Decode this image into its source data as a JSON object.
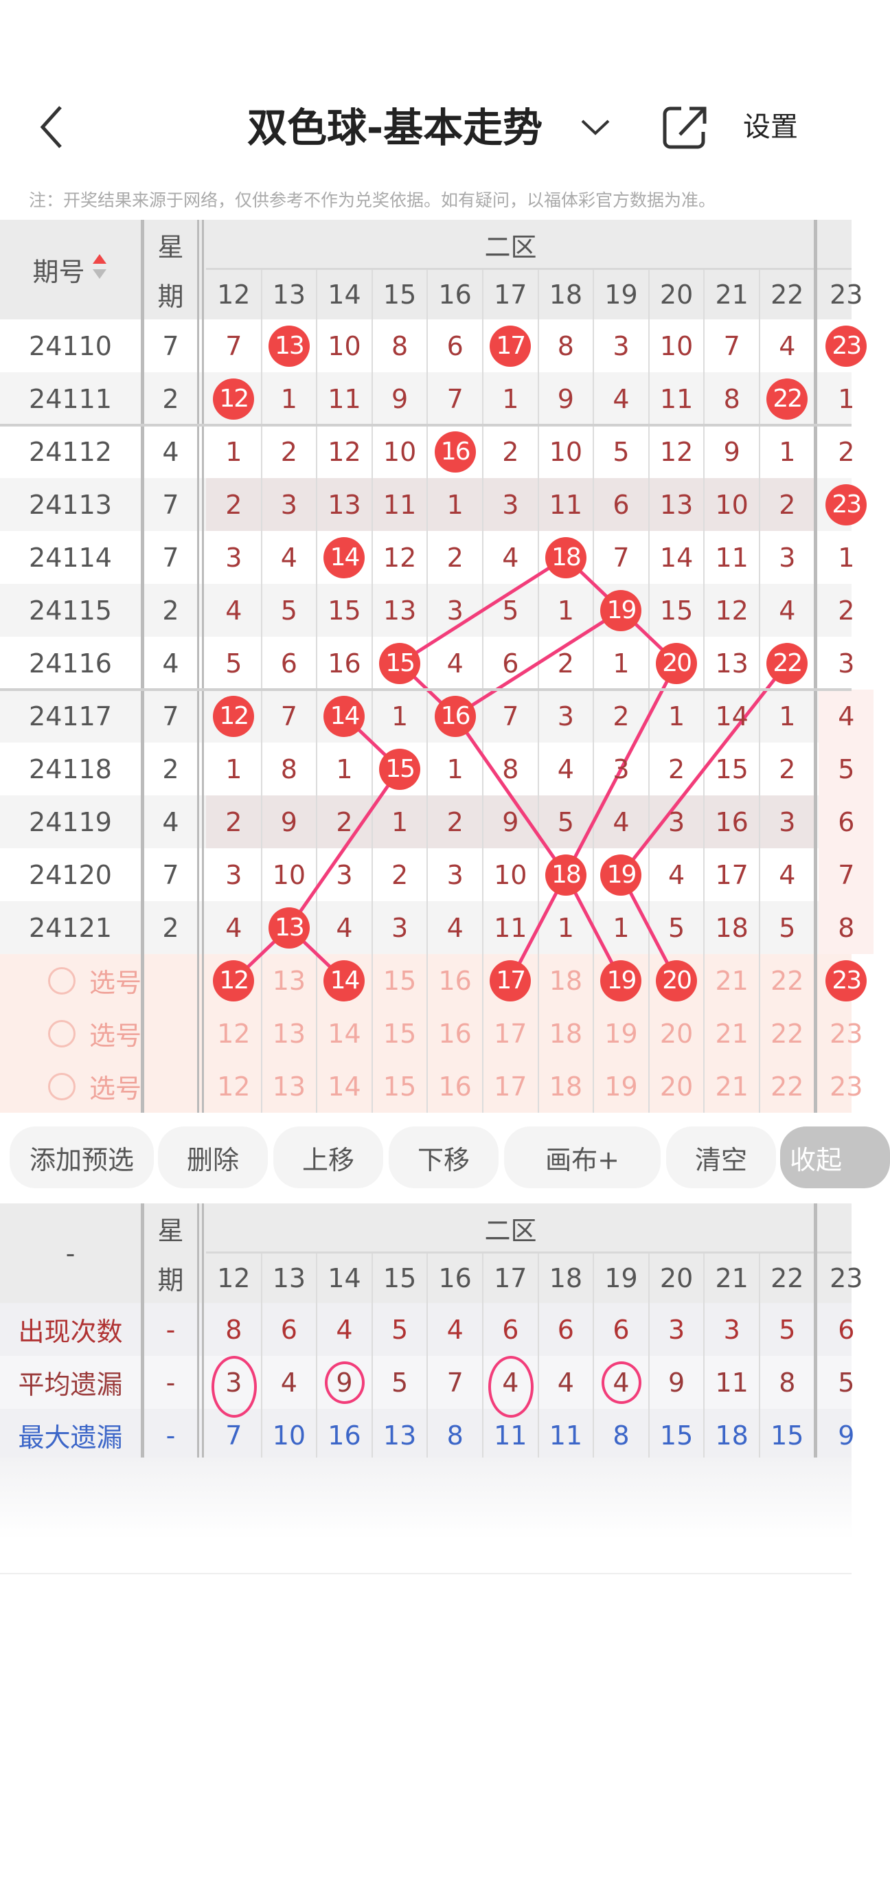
{
  "nav": {
    "title": "双色球-基本走势",
    "settings_label": "设置",
    "icons": {
      "back": "chevron-left-icon",
      "title_dropdown": "chevron-down-icon",
      "share": "share-icon"
    }
  },
  "note": "注：开奖结果来源于网络，仅供参考不作为兑奖依据。如有疑问，以福体彩官方数据为准。",
  "trend_table": {
    "period_header": "期号",
    "week_header_top": "星",
    "week_header_bottom": "期",
    "zone_header": "二区",
    "columns": [
      "12",
      "13",
      "14",
      "15",
      "16",
      "17",
      "18",
      "19",
      "20",
      "21",
      "22",
      "23"
    ],
    "rows": [
      {
        "period": "24110",
        "week": "7",
        "values": [
          "7",
          "13",
          "10",
          "8",
          "6",
          "17",
          "8",
          "3",
          "10",
          "7",
          "4",
          "23"
        ]
      },
      {
        "period": "24111",
        "week": "2",
        "values": [
          "12",
          "1",
          "11",
          "9",
          "7",
          "1",
          "9",
          "4",
          "11",
          "8",
          "22",
          "1"
        ]
      },
      {
        "period": "24112",
        "week": "4",
        "values": [
          "1",
          "2",
          "12",
          "10",
          "16",
          "2",
          "10",
          "5",
          "12",
          "9",
          "1",
          "2"
        ]
      },
      {
        "period": "24113",
        "week": "7",
        "values": [
          "2",
          "3",
          "13",
          "11",
          "1",
          "3",
          "11",
          "6",
          "13",
          "10",
          "2",
          "23"
        ]
      },
      {
        "period": "24114",
        "week": "7",
        "values": [
          "3",
          "4",
          "14",
          "12",
          "2",
          "4",
          "18",
          "7",
          "14",
          "11",
          "3",
          "1"
        ]
      },
      {
        "period": "24115",
        "week": "2",
        "values": [
          "4",
          "5",
          "15",
          "13",
          "3",
          "5",
          "1",
          "19",
          "15",
          "12",
          "4",
          "2"
        ]
      },
      {
        "period": "24116",
        "week": "4",
        "values": [
          "5",
          "6",
          "16",
          "15",
          "4",
          "6",
          "2",
          "1",
          "20",
          "13",
          "22",
          "3"
        ]
      },
      {
        "period": "24117",
        "week": "7",
        "values": [
          "12",
          "7",
          "14",
          "1",
          "16",
          "7",
          "3",
          "2",
          "1",
          "14",
          "1",
          "4"
        ]
      },
      {
        "period": "24118",
        "week": "2",
        "values": [
          "1",
          "8",
          "1",
          "15",
          "1",
          "8",
          "4",
          "3",
          "2",
          "15",
          "2",
          "5"
        ]
      },
      {
        "period": "24119",
        "week": "4",
        "values": [
          "2",
          "9",
          "2",
          "1",
          "2",
          "9",
          "5",
          "4",
          "3",
          "16",
          "3",
          "6"
        ]
      },
      {
        "period": "24120",
        "week": "7",
        "values": [
          "3",
          "10",
          "3",
          "2",
          "3",
          "10",
          "18",
          "19",
          "4",
          "17",
          "4",
          "7"
        ]
      },
      {
        "period": "24121",
        "week": "2",
        "values": [
          "4",
          "13",
          "4",
          "3",
          "4",
          "11",
          "1",
          "1",
          "5",
          "18",
          "5",
          "8"
        ]
      }
    ],
    "pick_rows": [
      {
        "label": "选号",
        "selected": [
          "12",
          "14",
          "17",
          "19",
          "20",
          "23"
        ]
      },
      {
        "label": "选号",
        "selected": []
      },
      {
        "label": "选号",
        "selected": []
      }
    ],
    "trend_lines": [
      [
        [
          "24114",
          "18"
        ],
        [
          "24115",
          "19"
        ],
        [
          "24116",
          "20"
        ],
        [
          "24120",
          "18"
        ],
        [
          "pick",
          "17"
        ]
      ],
      [
        [
          "24114",
          "18"
        ],
        [
          "24116",
          "15"
        ],
        [
          "24117",
          "16"
        ]
      ],
      [
        [
          "24115",
          "19"
        ],
        [
          "24117",
          "16"
        ],
        [
          "24120",
          "18"
        ],
        [
          "pick",
          "19"
        ]
      ],
      [
        [
          "24116",
          "22"
        ],
        [
          "24120",
          "19"
        ],
        [
          "pick",
          "20"
        ]
      ],
      [
        [
          "24117",
          "14"
        ],
        [
          "24118",
          "15"
        ],
        [
          "24121",
          "13"
        ],
        [
          "pick",
          "12"
        ]
      ],
      [
        [
          "24121",
          "13"
        ],
        [
          "pick",
          "14"
        ]
      ]
    ]
  },
  "buttons": [
    "添加预选",
    "删除",
    "上移",
    "下移",
    "画布+",
    "清空",
    "收起"
  ],
  "stats_table": {
    "corner": "-",
    "week_header_top": "星",
    "week_header_bottom": "期",
    "zone_header": "二区",
    "columns": [
      "12",
      "13",
      "14",
      "15",
      "16",
      "17",
      "18",
      "19",
      "20",
      "21",
      "22",
      "23"
    ],
    "rows": [
      {
        "label": "出现次数",
        "week": "-",
        "color": "#b03333",
        "values": [
          "8",
          "6",
          "4",
          "5",
          "4",
          "6",
          "6",
          "6",
          "3",
          "3",
          "5",
          "6"
        ]
      },
      {
        "label": "平均遗漏",
        "week": "-",
        "color": "#9a3a3a",
        "values": [
          "3",
          "4",
          "9",
          "5",
          "7",
          "4",
          "4",
          "4",
          "9",
          "11",
          "8",
          "5"
        ]
      },
      {
        "label": "最大遗漏",
        "week": "-",
        "color": "#3c66c8",
        "values": [
          "7",
          "10",
          "16",
          "13",
          "8",
          "11",
          "11",
          "8",
          "15",
          "18",
          "15",
          "9"
        ]
      }
    ],
    "circled_avg_omission": [
      "12",
      "14",
      "17",
      "19"
    ]
  },
  "colors": {
    "ball": "#ef4646",
    "trend_line": "#f23d7a",
    "number": "#a63a3a",
    "pick_bg": "#fdeee9"
  }
}
